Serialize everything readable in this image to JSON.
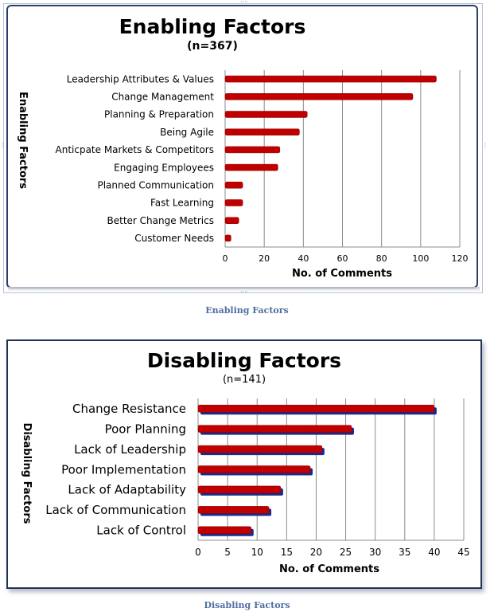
{
  "chart_data": [
    {
      "type": "bar",
      "orientation": "horizontal",
      "title": "Enabling Factors",
      "subtitle": "(n=367)",
      "ylabel": "Enabling Factors",
      "xlabel": "No. of Comments",
      "categories": [
        "Leadership Attributes & Values",
        "Change Management",
        "Planning & Preparation",
        "Being Agile",
        "Anticpate Markets & Competitors",
        "Engaging Employees",
        "Planned Communication",
        "Fast Learning",
        "Better Change Metrics",
        "Customer Needs"
      ],
      "values": [
        108,
        96,
        42,
        38,
        28,
        27,
        9,
        9,
        7,
        3
      ],
      "xlim": [
        0,
        120
      ],
      "xticks": [
        "0",
        "20",
        "40",
        "60",
        "80",
        "100",
        "120"
      ],
      "grid": true,
      "legend": "none",
      "bar_color": "#c00000",
      "caption": "Enabling Factors"
    },
    {
      "type": "bar",
      "orientation": "horizontal",
      "title": "Disabling Factors",
      "subtitle": "(n=141)",
      "ylabel": "Disabling Factors",
      "xlabel": "No. of Comments",
      "categories": [
        "Change Resistance",
        "Poor Planning",
        "Lack of Leadership",
        "Poor Implementation",
        "Lack of Adaptability",
        "Lack of Communication",
        "Lack of Control"
      ],
      "values": [
        40,
        26,
        21,
        19,
        14,
        12,
        9
      ],
      "xlim": [
        0,
        45
      ],
      "xticks": [
        "0",
        "5",
        "10",
        "15",
        "20",
        "25",
        "30",
        "35",
        "40",
        "45"
      ],
      "grid": true,
      "legend": "none",
      "bar_color": "#c00000",
      "shadow_color": "#1a2a8c",
      "caption": "Disabling Factors"
    }
  ]
}
